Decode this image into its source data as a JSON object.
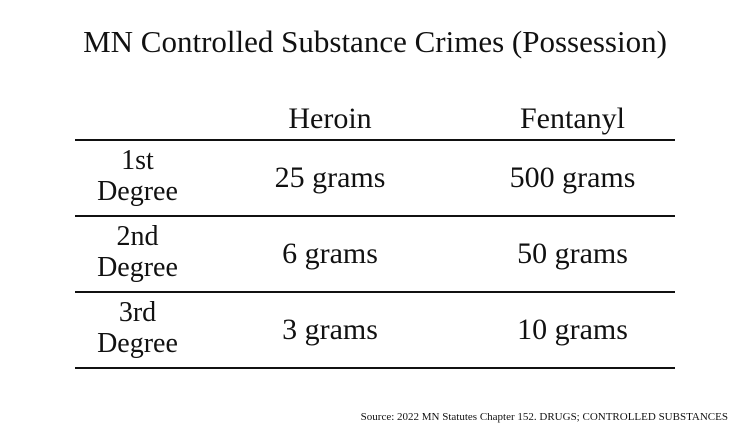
{
  "title": "MN Controlled Substance Crimes (Possession)",
  "columns": [
    "Heroin",
    "Fentanyl"
  ],
  "rows": [
    {
      "label_line1": "1st",
      "label_line2": "Degree",
      "heroin": "25 grams",
      "fentanyl": "500 grams"
    },
    {
      "label_line1": "2nd",
      "label_line2": "Degree",
      "heroin": "6 grams",
      "fentanyl": "50 grams"
    },
    {
      "label_line1": "3rd",
      "label_line2": "Degree",
      "heroin": "3 grams",
      "fentanyl": "10 grams"
    }
  ],
  "source": "Source: 2022 MN Statutes Chapter 152. DRUGS; CONTROLLED SUBSTANCES"
}
